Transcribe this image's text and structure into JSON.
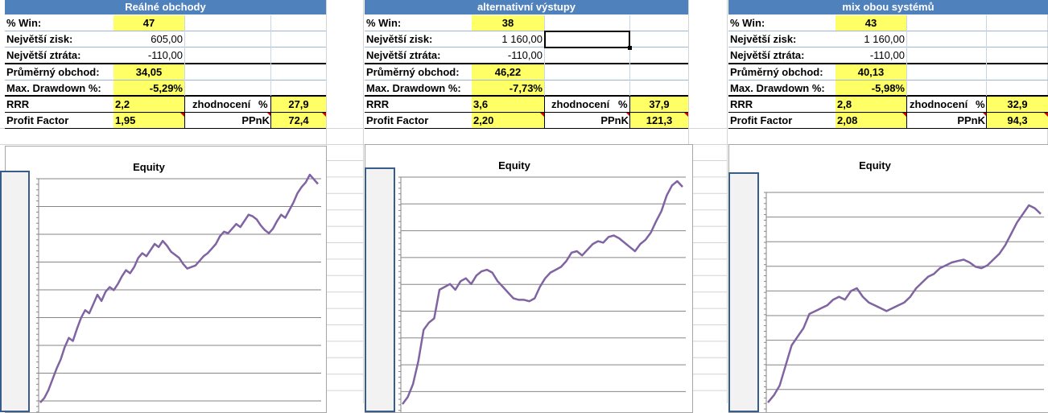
{
  "panels": [
    {
      "title": "Reálné obchody",
      "win_label": "% Win:",
      "win_value": "47",
      "max_gain_label": "Největší zisk:",
      "max_gain_value": "605,00",
      "max_loss_label": "Největší ztráta:",
      "max_loss_value": "-110,00",
      "avg_trade_label": "Průměrný obchod:",
      "avg_trade_value": "34,05",
      "max_dd_label": "Max. Drawdown %:",
      "max_dd_value": "-5,29%",
      "rrr_label": "RRR",
      "rrr_value": "2,2",
      "eval_label": "zhodnocení",
      "eval_unit": "%",
      "eval_value": "27,9",
      "pf_label": "Profit Factor",
      "pf_value": "1,95",
      "ppnk_label": "PPnK",
      "ppnk_value": "72,4",
      "chart_title": "Equity"
    },
    {
      "title": "alternativní výstupy",
      "win_label": "% Win:",
      "win_value": "38",
      "max_gain_label": "Největší zisk:",
      "max_gain_value": "1 160,00",
      "max_loss_label": "Největší ztráta:",
      "max_loss_value": "-110,00",
      "avg_trade_label": "Průměrný obchod:",
      "avg_trade_value": "46,22",
      "max_dd_label": "Max. Drawdown %:",
      "max_dd_value": "-7,73%",
      "rrr_label": "RRR",
      "rrr_value": "3,6",
      "eval_label": "zhodnocení",
      "eval_unit": "%",
      "eval_value": "37,9",
      "pf_label": "Profit Factor",
      "pf_value": "2,20",
      "ppnk_label": "PPnK",
      "ppnk_value": "121,3",
      "chart_title": "Equity"
    },
    {
      "title": "mix obou systémů",
      "win_label": "% Win:",
      "win_value": "43",
      "max_gain_label": "Největší zisk:",
      "max_gain_value": "1 160,00",
      "max_loss_label": "Největší ztráta:",
      "max_loss_value": "-110,00",
      "avg_trade_label": "Průměrný obchod:",
      "avg_trade_value": "40,13",
      "max_dd_label": "Max. Drawdown %:",
      "max_dd_value": "-5,98%",
      "rrr_label": "RRR",
      "rrr_value": "2,8",
      "eval_label": "zhodnocení",
      "eval_unit": "%",
      "eval_value": "32,9",
      "pf_label": "Profit Factor",
      "pf_value": "2,08",
      "ppnk_label": "PPnK",
      "ppnk_value": "94,3",
      "chart_title": "Equity"
    }
  ],
  "colors": {
    "header": "#4f81bd",
    "highlight": "#ffff66",
    "line": "#8064a2",
    "gridline": "#868686",
    "comment_flag": "#d00000"
  },
  "chart_data": [
    {
      "type": "line",
      "title": "Equity",
      "grid": true,
      "legend": "none",
      "series": [
        {
          "values": [
            0,
            3,
            8,
            15,
            22,
            28,
            36,
            42,
            40,
            48,
            55,
            60,
            58,
            64,
            70,
            66,
            72,
            75,
            73,
            77,
            82,
            86,
            84,
            88,
            94,
            97,
            95,
            99,
            103,
            101,
            105,
            102,
            98,
            96,
            94,
            90,
            87,
            88,
            89,
            92,
            95,
            97,
            100,
            103,
            108,
            111,
            110,
            113,
            116,
            114,
            118,
            122,
            121,
            119,
            115,
            112,
            110,
            113,
            118,
            122,
            120,
            125,
            130,
            136,
            140,
            143,
            148,
            145,
            142
          ]
        }
      ]
    },
    {
      "type": "line",
      "title": "Equity",
      "grid": true,
      "legend": "none",
      "series": [
        {
          "values": [
            0,
            5,
            14,
            30,
            52,
            57,
            60,
            80,
            82,
            84,
            80,
            86,
            88,
            84,
            90,
            93,
            94,
            92,
            86,
            82,
            78,
            74,
            73,
            73,
            72,
            74,
            82,
            88,
            92,
            94,
            96,
            100,
            106,
            107,
            104,
            108,
            112,
            114,
            113,
            117,
            118,
            116,
            113,
            110,
            107,
            112,
            115,
            120,
            128,
            135,
            146,
            153,
            156,
            152
          ]
        }
      ]
    },
    {
      "type": "line",
      "title": "Equity",
      "grid": true,
      "legend": "none",
      "series": [
        {
          "values": [
            0,
            5,
            12,
            26,
            40,
            46,
            52,
            62,
            64,
            66,
            68,
            72,
            74,
            72,
            78,
            80,
            74,
            70,
            68,
            66,
            64,
            66,
            68,
            70,
            74,
            80,
            84,
            88,
            90,
            94,
            96,
            98,
            99,
            100,
            98,
            95,
            94,
            96,
            100,
            104,
            110,
            118,
            126,
            132,
            138,
            136,
            132
          ]
        }
      ]
    }
  ]
}
